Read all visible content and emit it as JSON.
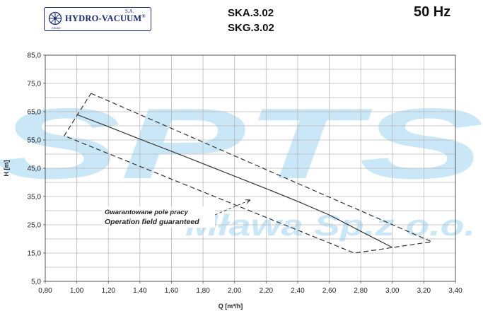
{
  "header": {
    "logo_name": "HYDRO-VACUUM",
    "logo_reg": "®",
    "logo_suffix": "S.A.",
    "logo_sub": "GRUDZ.",
    "models": [
      "SKA.3.02",
      "SKG.3.02"
    ],
    "frequency": "50 Hz"
  },
  "watermark": {
    "main": "SPTS",
    "sub": "Mława Sp.z o.o."
  },
  "colors": {
    "watermark": "#c9e7f7",
    "grid": "#b9b9b9",
    "curve": "#333333",
    "logo": "#1a2a6c"
  },
  "chart_data": {
    "type": "line",
    "title": "",
    "xlabel": "Q [m³/h]",
    "ylabel": "H [m]",
    "xlim": [
      0.8,
      3.4
    ],
    "ylim": [
      5.0,
      85.0
    ],
    "x_ticks": [
      "0,80",
      "1,00",
      "1,20",
      "1,40",
      "1,60",
      "1,80",
      "2,00",
      "2,20",
      "2,40",
      "2,60",
      "2,80",
      "3,00",
      "3,20",
      "3,40"
    ],
    "y_ticks": [
      "5,0",
      "15,0",
      "25,0",
      "35,0",
      "45,0",
      "55,0",
      "65,0",
      "75,0",
      "85,0"
    ],
    "grid": true,
    "series": [
      {
        "style": "solid",
        "points": [
          [
            1.0,
            64.0
          ],
          [
            1.2,
            59.7
          ],
          [
            1.4,
            55.3
          ],
          [
            1.6,
            51.0
          ],
          [
            1.8,
            46.6
          ],
          [
            2.0,
            42.2
          ],
          [
            2.2,
            37.8
          ],
          [
            2.4,
            33.3
          ],
          [
            2.6,
            28.5
          ],
          [
            2.8,
            22.7
          ],
          [
            3.0,
            17.0
          ]
        ]
      },
      {
        "style": "dashed",
        "points": [
          [
            1.09,
            71.5
          ],
          [
            3.25,
            19.0
          ],
          [
            2.76,
            15.0
          ],
          [
            0.92,
            56.5
          ],
          [
            1.09,
            71.5
          ]
        ]
      }
    ],
    "annotation": {
      "line1": "Gwarantowane pole pracy",
      "line2": "Operation field guaranteed",
      "arrow_to": [
        2.1,
        33.8
      ]
    }
  }
}
